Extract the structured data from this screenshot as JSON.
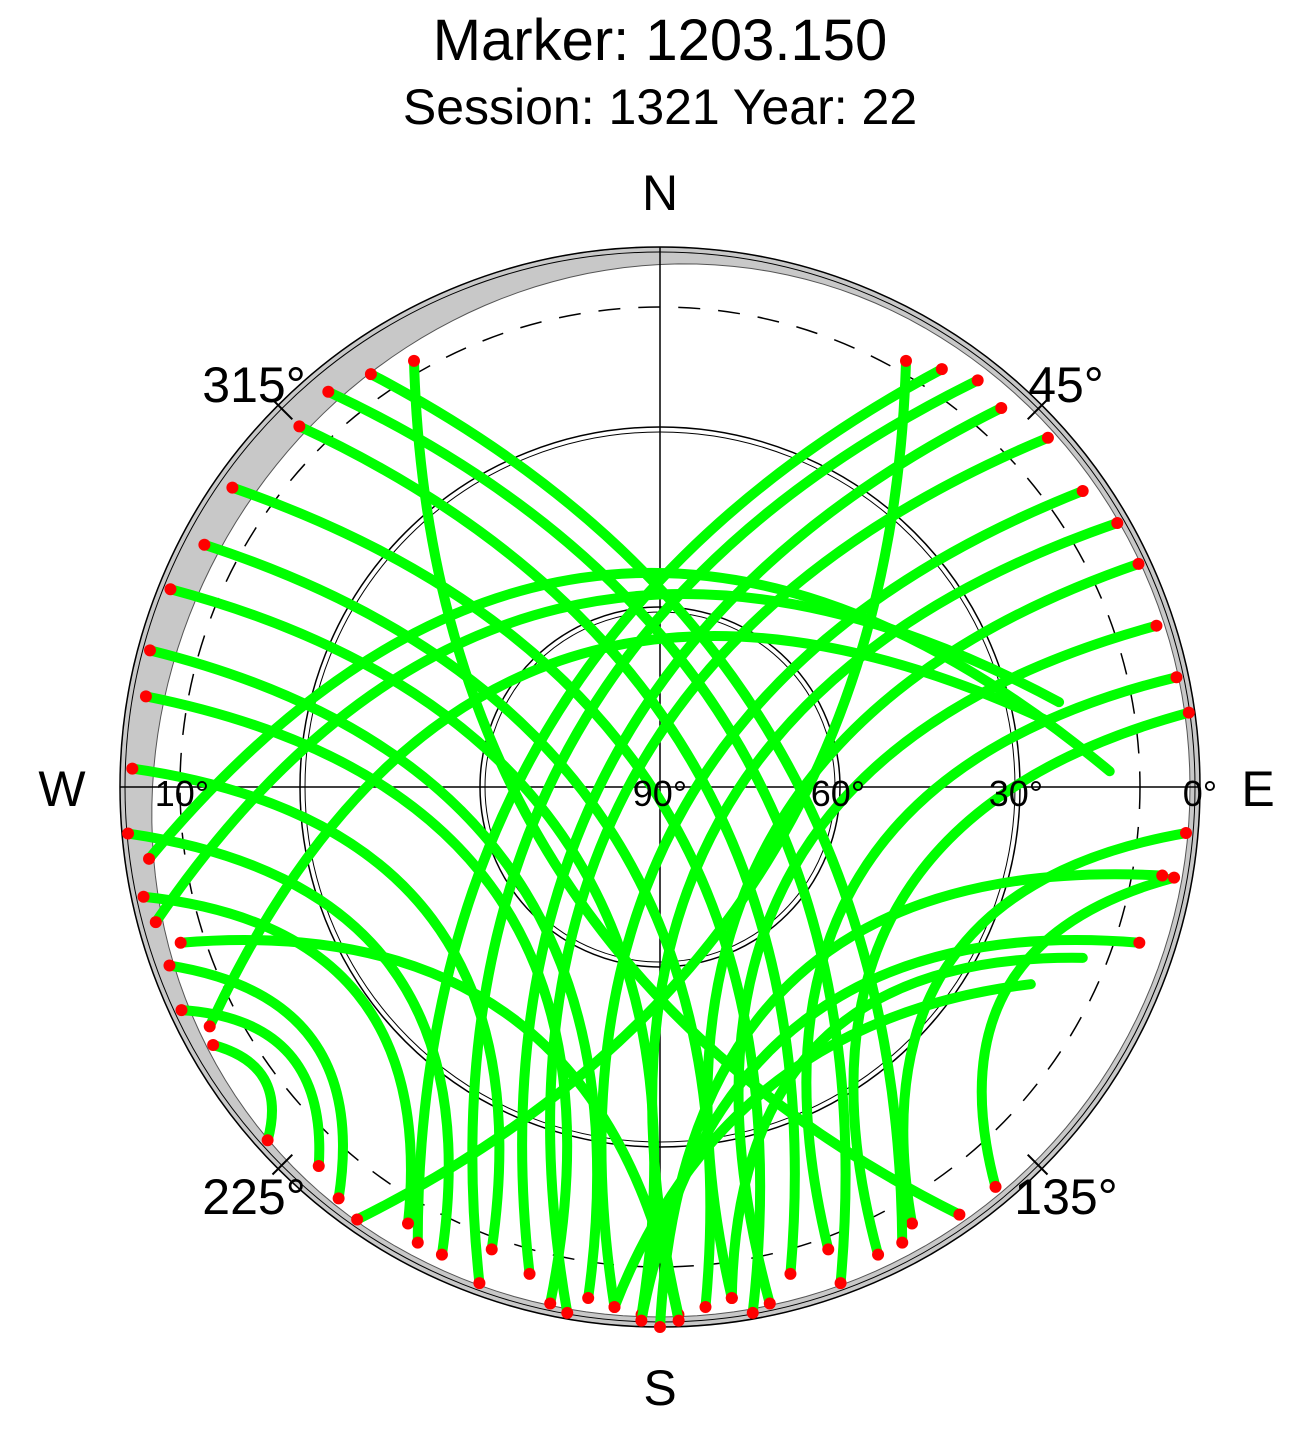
{
  "title": "Marker: 1203.150",
  "subtitle": "Session: 1321 Year: 22",
  "compass": {
    "n": "N",
    "s": "S",
    "e": "E",
    "w": "W"
  },
  "azimuth_labels": {
    "a45": "45°",
    "a135": "135°",
    "a225": "225°",
    "a315": "315°"
  },
  "elevation_labels": {
    "e0": "0°",
    "e10": "10°",
    "e30": "30°",
    "e60": "60°",
    "e90": "90°"
  },
  "colors": {
    "track": "#00ff00",
    "low_elevation_point": "#ff0000",
    "obstruction_mask": "#c8c8c8",
    "grid": "#000000"
  },
  "chart_data": {
    "type": "scatter",
    "projection": "polar-skyplot",
    "azimuth_range": [
      0,
      360
    ],
    "elevation_range": [
      0,
      90
    ],
    "elevation_rings": [
      0,
      30,
      60,
      90
    ],
    "cutoff_elevation": 10,
    "tracks": [
      {
        "az0": 30,
        "el0": 8,
        "az1": 215,
        "el1": 2,
        "amp": 0.3
      },
      {
        "az0": 34,
        "el0": 6,
        "az1": 208,
        "el1": 4,
        "amp": 0.3
      },
      {
        "az0": 38,
        "el0": 4,
        "az1": 200,
        "el1": 2,
        "amp": 0.35
      },
      {
        "az0": 42,
        "el0": 5,
        "az1": 195,
        "el1": 6,
        "amp": 0.35
      },
      {
        "az0": 48,
        "el0": 3,
        "az1": 190,
        "el1": 1,
        "amp": 0.4
      },
      {
        "az0": 55,
        "el0": 4,
        "az1": 185,
        "el1": 3,
        "amp": 0.4
      },
      {
        "az0": 60,
        "el0": 2,
        "az1": 178,
        "el1": 2,
        "amp": 0.45
      },
      {
        "az0": 65,
        "el0": 2,
        "az1": 172,
        "el1": 4,
        "amp": 0.45
      },
      {
        "az0": 72,
        "el0": 3,
        "az1": 168,
        "el1": 2,
        "amp": 0.5
      },
      {
        "az0": 78,
        "el0": 2,
        "az1": 160,
        "el1": 8,
        "amp": 0.5
      },
      {
        "az0": 82,
        "el0": 1,
        "az1": 155,
        "el1": 4,
        "amp": 0.5
      },
      {
        "az0": 95,
        "el0": 2,
        "az1": 150,
        "el1": 6,
        "amp": 0.5
      },
      {
        "az0": 100,
        "el0": 3,
        "az1": 140,
        "el1": 3,
        "amp": 0.5
      },
      {
        "az0": 330,
        "el0": 8,
        "az1": 145,
        "el1": 3,
        "amp": 0.3
      },
      {
        "az0": 325,
        "el0": 6,
        "az1": 152,
        "el1": 4,
        "amp": 0.3
      },
      {
        "az0": 320,
        "el0": 4,
        "az1": 160,
        "el1": 2,
        "amp": 0.35
      },
      {
        "az0": 315,
        "el0": 5,
        "az1": 165,
        "el1": 6,
        "amp": 0.35
      },
      {
        "az0": 305,
        "el0": 3,
        "az1": 170,
        "el1": 1,
        "amp": 0.4
      },
      {
        "az0": 298,
        "el0": 4,
        "az1": 175,
        "el1": 3,
        "amp": 0.4
      },
      {
        "az0": 292,
        "el0": 2,
        "az1": 182,
        "el1": 2,
        "amp": 0.45
      },
      {
        "az0": 285,
        "el0": 2,
        "az1": 188,
        "el1": 4,
        "amp": 0.45
      },
      {
        "az0": 280,
        "el0": 3,
        "az1": 192,
        "el1": 2,
        "amp": 0.5
      },
      {
        "az0": 272,
        "el0": 2,
        "az1": 200,
        "el1": 8,
        "amp": 0.5
      },
      {
        "az0": 265,
        "el0": 1,
        "az1": 205,
        "el1": 4,
        "amp": 0.5
      },
      {
        "az0": 258,
        "el0": 2,
        "az1": 210,
        "el1": 6,
        "amp": 0.5
      },
      {
        "az0": 250,
        "el0": 3,
        "az1": 218,
        "el1": 3,
        "amp": 0.5
      },
      {
        "az0": 245,
        "el0": 2,
        "az1": 222,
        "el1": 5,
        "amp": 0.5
      },
      {
        "az0": 240,
        "el0": 4,
        "az1": 228,
        "el1": 2,
        "amp": 0.5
      },
      {
        "az0": 112,
        "el0": 14,
        "az1": 172,
        "el1": 4,
        "amp": 0.5
      },
      {
        "az0": 118,
        "el0": 20,
        "az1": 185,
        "el1": 3,
        "amp": 0.3
      },
      {
        "az0": 242,
        "el0": 5,
        "az1": 80,
        "el1": 25,
        "amp": 0.5
      },
      {
        "az0": 255,
        "el0": 3,
        "az1": 78,
        "el1": 22,
        "amp": 0.45
      },
      {
        "az0": 262,
        "el0": 4,
        "az1": 88,
        "el1": 15,
        "amp": 0.5
      },
      {
        "az0": 100,
        "el0": 5,
        "az1": 180,
        "el1": 0,
        "amp": 0.5
      },
      {
        "az0": 108,
        "el0": 6,
        "az1": 182,
        "el1": 1,
        "amp": 0.45
      },
      {
        "az0": 252,
        "el0": 6,
        "az1": 178,
        "el1": 1,
        "amp": 0.45
      }
    ]
  }
}
